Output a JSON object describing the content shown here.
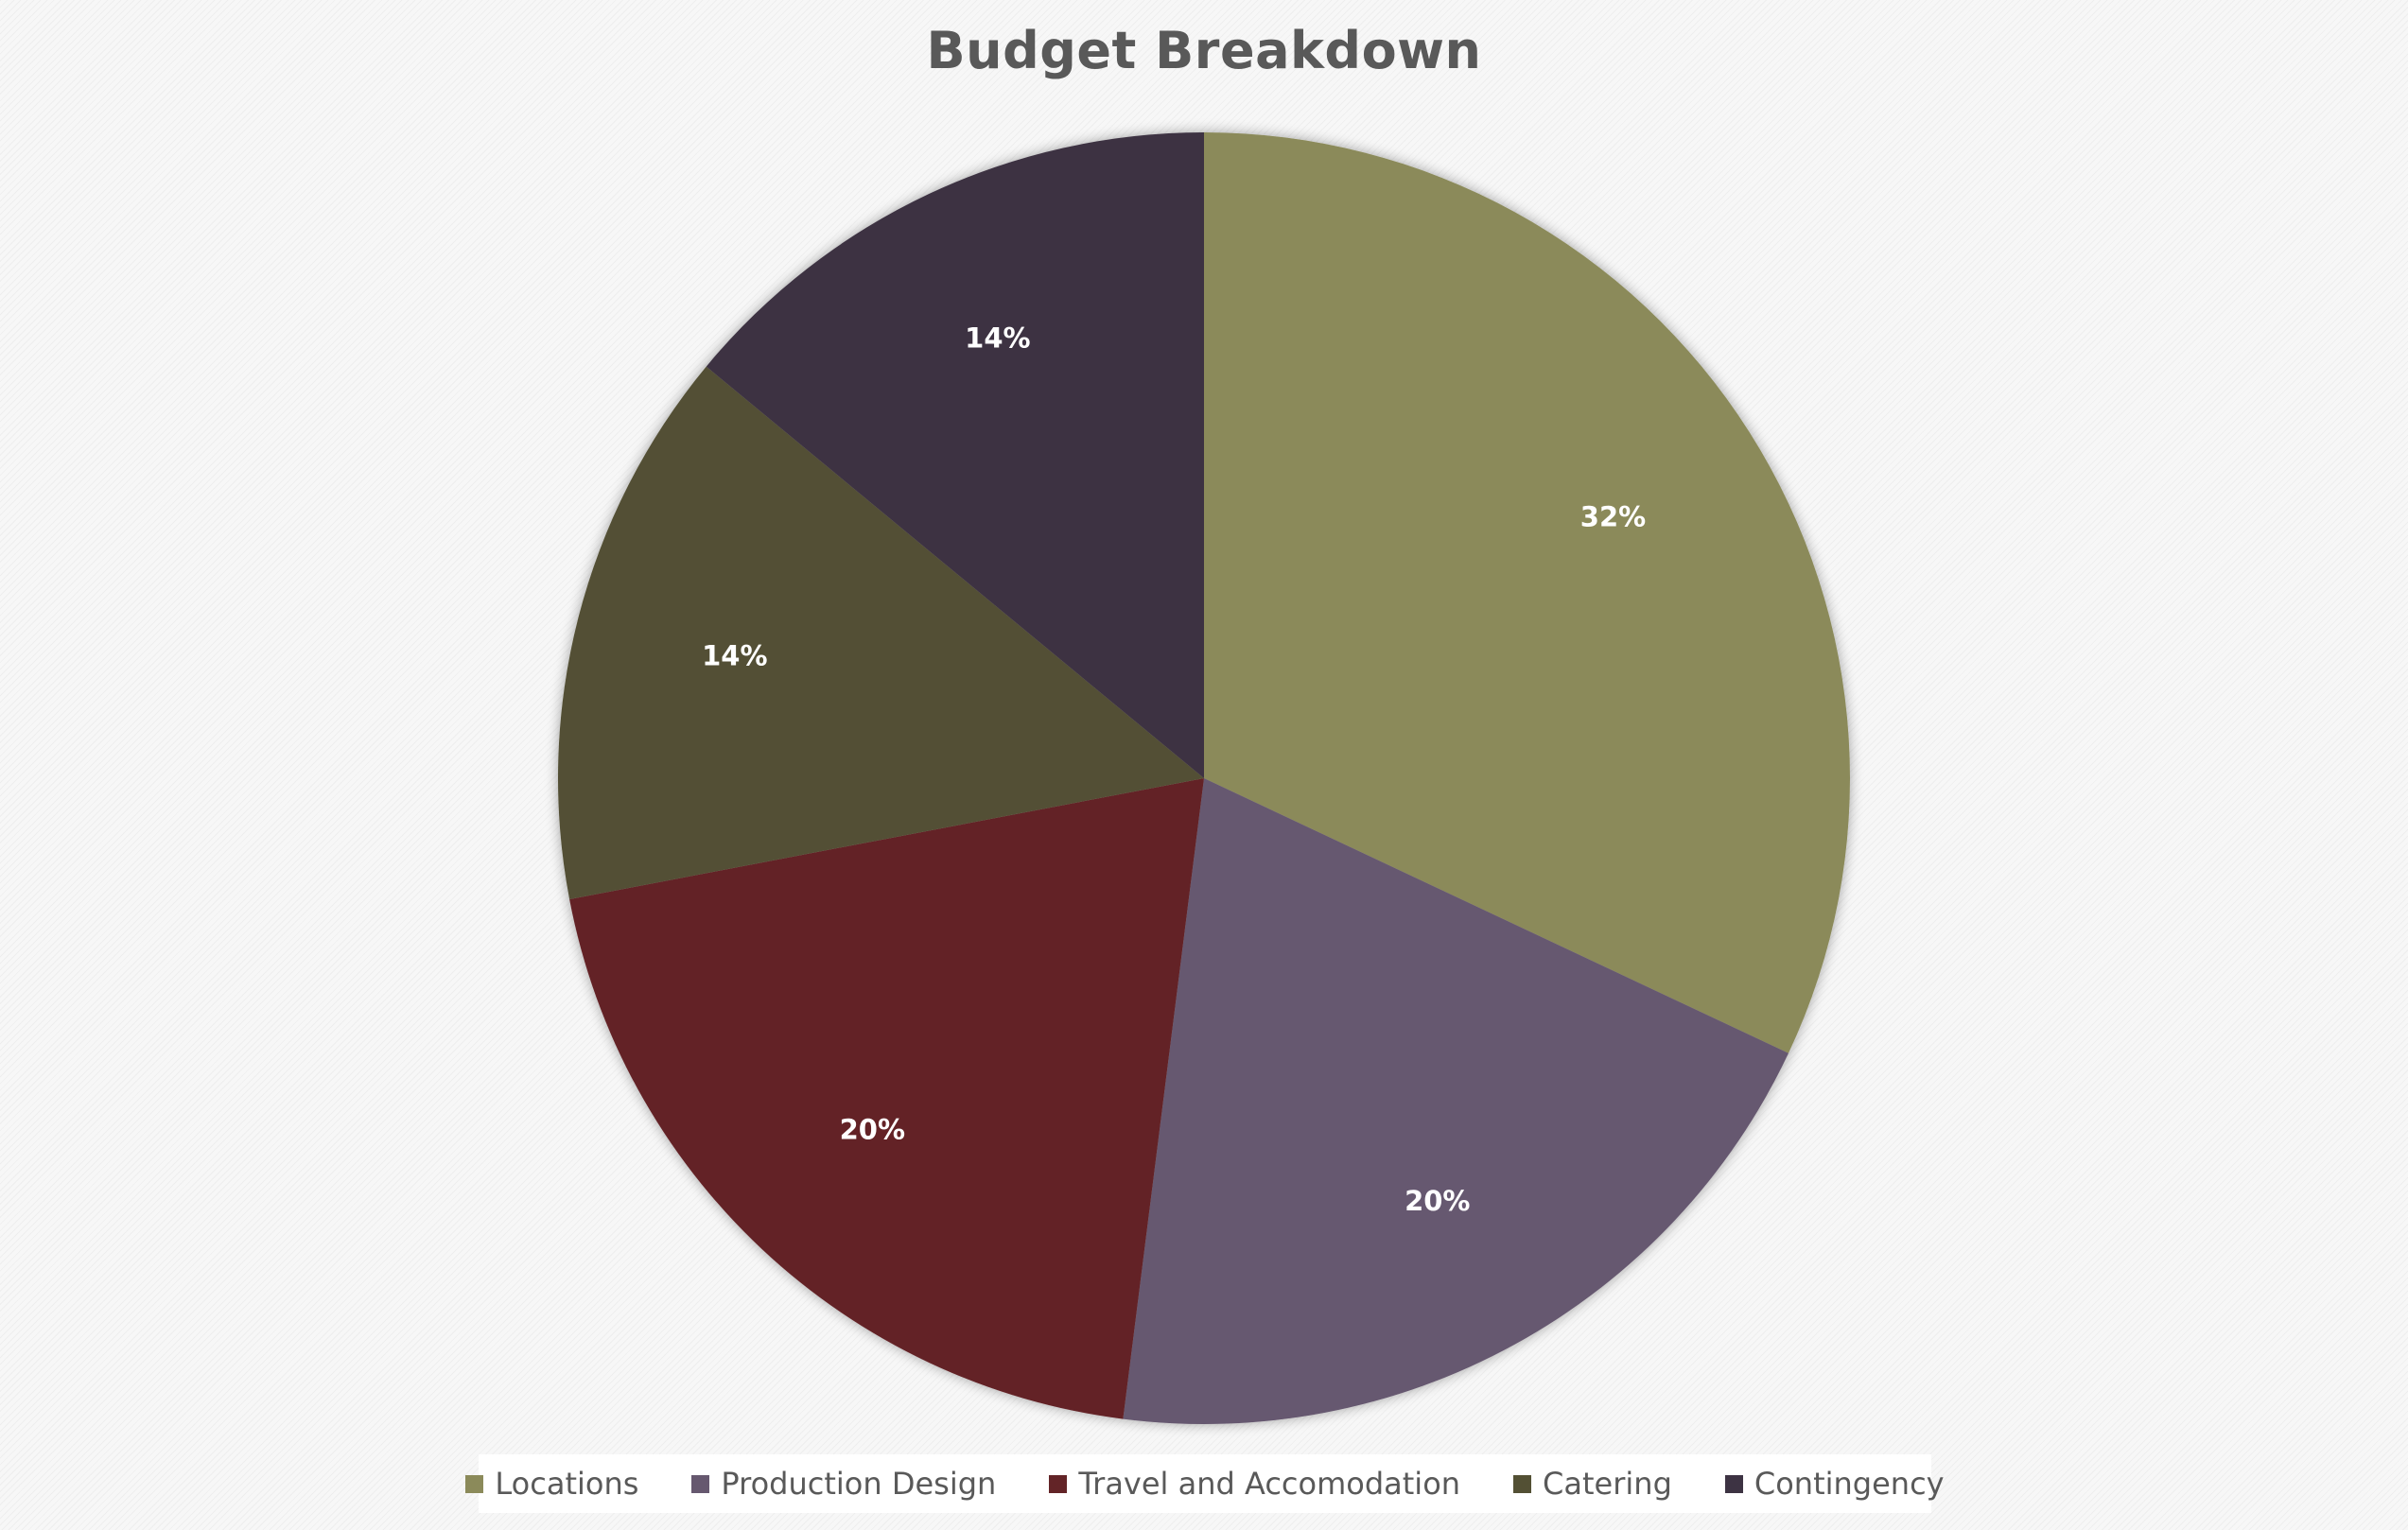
{
  "chart_data": {
    "type": "pie",
    "title": "Budget Breakdown",
    "categories": [
      "Locations",
      "Production Design",
      "Travel and Accomodation",
      "Catering",
      "Contingency"
    ],
    "values": [
      32,
      20,
      20,
      14,
      14
    ],
    "value_labels": [
      "32%",
      "20%",
      "20%",
      "14%",
      "14%"
    ],
    "colors": [
      "#8b8a5a",
      "#66586f",
      "#632427",
      "#535034",
      "#3d3343"
    ],
    "start_angle": "12 o'clock",
    "direction": "clockwise",
    "legend_position": "bottom"
  }
}
